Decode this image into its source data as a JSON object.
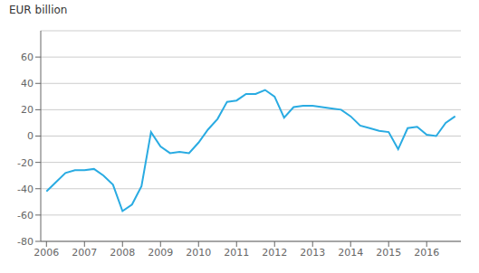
{
  "chart_data": {
    "type": "line",
    "ylabel": "EUR billion",
    "color": "#29ABE2",
    "xlim": [
      2005.85,
      2016.9
    ],
    "xticks": [
      2006,
      2007,
      2008,
      2009,
      2010,
      2011,
      2012,
      2013,
      2014,
      2015,
      2016
    ],
    "ylim": [
      -80,
      80
    ],
    "yticks": [
      -80,
      -60,
      -40,
      -20,
      0,
      20,
      40,
      60
    ],
    "grid": true,
    "x": [
      2006.0,
      2006.25,
      2006.5,
      2006.75,
      2007.0,
      2007.25,
      2007.5,
      2007.75,
      2008.0,
      2008.25,
      2008.5,
      2008.75,
      2009.0,
      2009.25,
      2009.5,
      2009.75,
      2010.0,
      2010.25,
      2010.5,
      2010.75,
      2011.0,
      2011.25,
      2011.5,
      2011.75,
      2012.0,
      2012.25,
      2012.5,
      2012.75,
      2013.0,
      2013.25,
      2013.5,
      2013.75,
      2014.0,
      2014.25,
      2014.5,
      2014.75,
      2015.0,
      2015.25,
      2015.5,
      2015.75,
      2016.0,
      2016.25,
      2016.5,
      2016.75
    ],
    "values": [
      -42,
      -35,
      -28,
      -26,
      -26,
      -25,
      -30,
      -37,
      -57,
      -52,
      -38,
      3,
      -8,
      -13,
      -12,
      -13,
      -5,
      5,
      13,
      26,
      27,
      32,
      32,
      35,
      30,
      14,
      22,
      23,
      23,
      22,
      21,
      20,
      15,
      8,
      6,
      4,
      3,
      -10,
      6,
      7,
      1,
      0,
      10,
      15
    ]
  }
}
